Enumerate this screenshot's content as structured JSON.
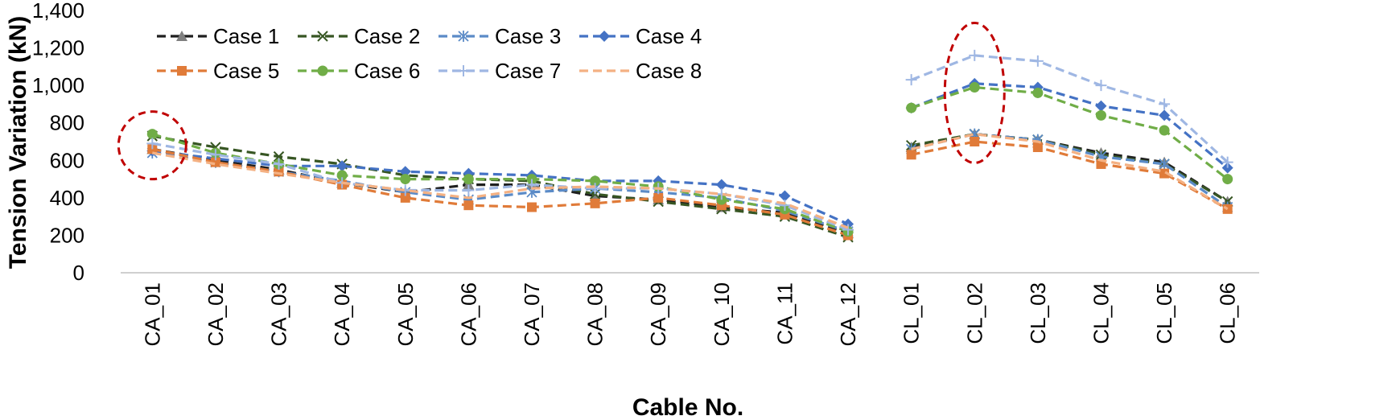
{
  "chart_data": {
    "type": "line",
    "title": "",
    "xlabel": "Cable No.",
    "ylabel": "Tension Variation (kN)",
    "ylim": [
      0,
      1400
    ],
    "yticks": [
      0,
      200,
      400,
      600,
      800,
      1000,
      1200,
      1400
    ],
    "ytick_labels": [
      "0",
      "200",
      "400",
      "600",
      "800",
      "1,000",
      "1,200",
      "1,400"
    ],
    "grid": false,
    "legend_position": "top-left",
    "categories": [
      "CA_01",
      "CA_02",
      "CA_03",
      "CA_04",
      "CA_05",
      "CA_06",
      "CA_07",
      "CA_08",
      "CA_09",
      "CA_10",
      "CA_11",
      "CA_12",
      "CL_01",
      "CL_02",
      "CL_03",
      "CL_04",
      "CL_05",
      "CL_06"
    ],
    "segments": [
      [
        0,
        11
      ],
      [
        12,
        17
      ]
    ],
    "series": [
      {
        "name": "Case 1",
        "color": "#1f1f1f",
        "marker": "triangle",
        "values": [
          660,
          600,
          550,
          480,
          430,
          470,
          470,
          410,
          390,
          350,
          320,
          210,
          670,
          740,
          710,
          640,
          590,
          380
        ]
      },
      {
        "name": "Case 2",
        "color": "#375623",
        "marker": "x",
        "values": [
          730,
          670,
          620,
          580,
          520,
          500,
          490,
          420,
          380,
          340,
          300,
          190,
          680,
          740,
          710,
          630,
          580,
          380
        ]
      },
      {
        "name": "Case 3",
        "color": "#5b8bc7",
        "marker": "asterisk",
        "values": [
          640,
          590,
          540,
          490,
          430,
          390,
          430,
          450,
          430,
          400,
          330,
          220,
          660,
          740,
          710,
          620,
          580,
          350
        ]
      },
      {
        "name": "Case 4",
        "color": "#4472c4",
        "marker": "diamond",
        "values": [
          650,
          610,
          570,
          570,
          540,
          530,
          520,
          490,
          490,
          470,
          410,
          260,
          880,
          1010,
          990,
          890,
          840,
          560
        ]
      },
      {
        "name": "Case 5",
        "color": "#e07b39",
        "marker": "square",
        "values": [
          660,
          590,
          540,
          470,
          400,
          360,
          350,
          370,
          400,
          360,
          310,
          200,
          630,
          700,
          670,
          580,
          530,
          340
        ]
      },
      {
        "name": "Case 6",
        "color": "#70ad47",
        "marker": "circle",
        "values": [
          740,
          640,
          580,
          520,
          500,
          500,
          500,
          490,
          460,
          390,
          340,
          220,
          880,
          990,
          960,
          840,
          760,
          500
        ]
      },
      {
        "name": "Case 7",
        "color": "#9fb7e3",
        "marker": "plus",
        "values": [
          690,
          630,
          580,
          480,
          440,
          440,
          470,
          450,
          450,
          420,
          360,
          230,
          1030,
          1160,
          1130,
          1000,
          900,
          590
        ]
      },
      {
        "name": "Case 8",
        "color": "#f4b183",
        "marker": "none",
        "values": [
          640,
          580,
          530,
          480,
          440,
          400,
          450,
          460,
          450,
          420,
          370,
          240,
          660,
          740,
          700,
          600,
          540,
          340
        ]
      }
    ],
    "annotations": [
      {
        "type": "dashed-ellipse",
        "color": "#c00000",
        "category": "CA_01",
        "center_value": 680
      },
      {
        "type": "dashed-ellipse",
        "color": "#c00000",
        "category": "CL_02",
        "center_value": 960
      }
    ]
  }
}
